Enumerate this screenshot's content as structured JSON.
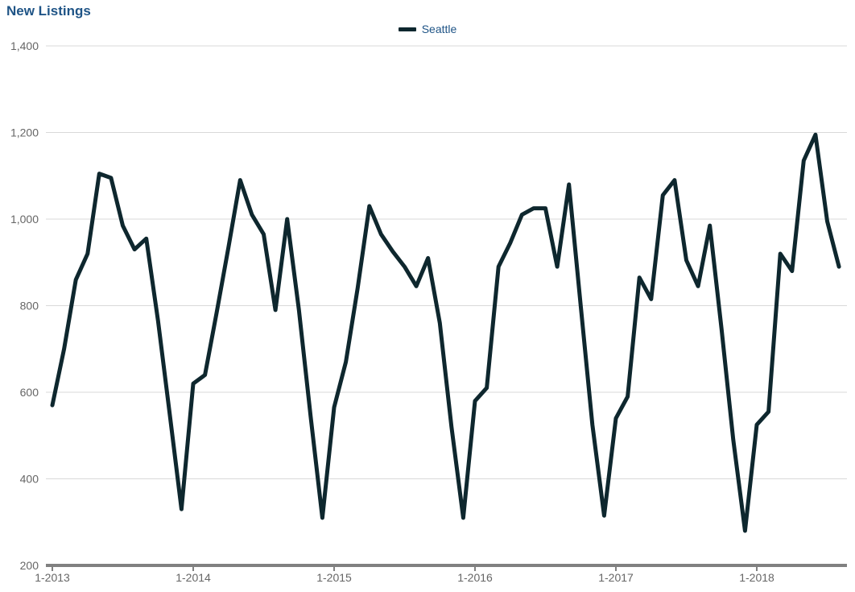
{
  "page": {
    "title": "New Listings"
  },
  "legend": {
    "series_label": "Seattle"
  },
  "chart_data": {
    "type": "line",
    "title": "New Listings",
    "x": [
      "1-2013",
      "2-2013",
      "3-2013",
      "4-2013",
      "5-2013",
      "6-2013",
      "7-2013",
      "8-2013",
      "9-2013",
      "10-2013",
      "11-2013",
      "12-2013",
      "1-2014",
      "2-2014",
      "3-2014",
      "4-2014",
      "5-2014",
      "6-2014",
      "7-2014",
      "8-2014",
      "9-2014",
      "10-2014",
      "11-2014",
      "12-2014",
      "1-2015",
      "2-2015",
      "3-2015",
      "4-2015",
      "5-2015",
      "6-2015",
      "7-2015",
      "8-2015",
      "9-2015",
      "10-2015",
      "11-2015",
      "12-2015",
      "1-2016",
      "2-2016",
      "3-2016",
      "4-2016",
      "5-2016",
      "6-2016",
      "7-2016",
      "8-2016",
      "9-2016",
      "10-2016",
      "11-2016",
      "12-2016",
      "1-2017",
      "2-2017",
      "3-2017",
      "4-2017",
      "5-2017",
      "6-2017",
      "7-2017",
      "8-2017",
      "9-2017",
      "10-2017",
      "11-2017",
      "12-2017",
      "1-2018",
      "2-2018",
      "3-2018",
      "4-2018",
      "5-2018",
      "6-2018",
      "7-2018",
      "8-2018"
    ],
    "series": [
      {
        "name": "Seattle",
        "color": "#0e272e",
        "values": [
          570,
          700,
          860,
          920,
          1105,
          1095,
          985,
          930,
          955,
          765,
          550,
          330,
          620,
          640,
          785,
          935,
          1090,
          1010,
          965,
          790,
          1000,
          790,
          545,
          310,
          565,
          670,
          840,
          1030,
          965,
          925,
          890,
          845,
          910,
          760,
          520,
          310,
          580,
          610,
          890,
          945,
          1010,
          1025,
          1025,
          890,
          1080,
          800,
          525,
          315,
          540,
          590,
          865,
          815,
          1055,
          1090,
          905,
          845,
          985,
          745,
          490,
          280,
          525,
          555,
          920,
          880,
          1135,
          1195,
          995,
          890
        ]
      }
    ],
    "x_tick_labels": [
      "1-2013",
      "1-2014",
      "1-2015",
      "1-2016",
      "1-2017",
      "1-2018"
    ],
    "x_tick_indices": [
      0,
      12,
      24,
      36,
      48,
      60
    ],
    "y_ticks": [
      200,
      400,
      600,
      800,
      1000,
      1200,
      1400
    ],
    "ylim": [
      200,
      1400
    ],
    "grid": "horizontal",
    "legend_position": "top-center",
    "colors": {
      "title_text": "#1f5486",
      "legend_text": "#1f5486",
      "axis_text": "#666666",
      "gridline": "#d9d9d9",
      "axis_line": "#808080",
      "series": "#0e272e"
    }
  }
}
